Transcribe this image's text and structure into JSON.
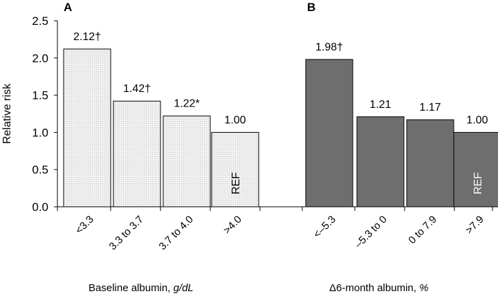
{
  "chart_data": [
    {
      "type": "bar",
      "panel_label": "A",
      "ylabel": "Relative risk",
      "ylim": [
        0,
        2.5
      ],
      "yticks": [
        "0.0",
        "0.5",
        "1.0",
        "1.5",
        "2.0",
        "2.5"
      ],
      "categories": [
        "<3.3",
        "3.3 to 3.7",
        "3.7 to 4.0",
        ">4.0"
      ],
      "values": [
        2.12,
        1.42,
        1.22,
        1.0
      ],
      "data_labels": [
        "2.12†",
        "1.42†",
        "1.22*",
        "1.00"
      ],
      "bar_annotation": "REF",
      "xlabel_text": "Baseline albumin, ",
      "xlabel_unit": "g/dL",
      "bar_color": "#e6e6e6",
      "ref_text_color": "#000000"
    },
    {
      "type": "bar",
      "panel_label": "B",
      "categories": [
        "<–5.3",
        "–5.3 to 0",
        "0 to 7.9",
        ">7.9"
      ],
      "values": [
        1.98,
        1.21,
        1.17,
        1.0
      ],
      "data_labels": [
        "1.98†",
        "1.21",
        "1.17",
        "1.00"
      ],
      "bar_annotation": "REF",
      "xlabel_text": "Δ6-month albumin, ",
      "xlabel_unit": "%",
      "bar_color": "#6e6e6e",
      "ref_text_color": "#ffffff"
    }
  ]
}
